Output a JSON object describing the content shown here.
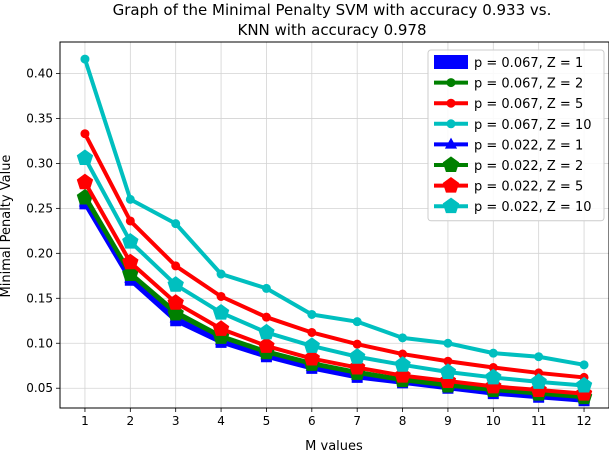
{
  "chart_data": {
    "type": "line",
    "title_line1": "Graph of the Minimal Penalty SVM with accuracy 0.933 vs.",
    "title_line2": "KNN with accuracy 0.978",
    "xlabel": "M values",
    "ylabel": "Minimal Penalty Value",
    "x": [
      1,
      2,
      3,
      4,
      5,
      6,
      7,
      8,
      9,
      10,
      11,
      12
    ],
    "xlim": [
      0.45,
      12.55
    ],
    "ylim": [
      0.028,
      0.435
    ],
    "yticks": [
      "0.05",
      "0.10",
      "0.15",
      "0.20",
      "0.25",
      "0.30",
      "0.35",
      "0.40"
    ],
    "ytick_values": [
      0.05,
      0.1,
      0.15,
      0.2,
      0.25,
      0.3,
      0.35,
      0.4
    ],
    "grid": true,
    "legend_position": "top-right",
    "series": [
      {
        "name": "p = 0.067, Z = 1",
        "color": "#0000ff",
        "marker": "square",
        "values": [
          0.255,
          0.17,
          0.125,
          0.101,
          0.085,
          0.072,
          0.062,
          0.056,
          0.05,
          0.044,
          0.04,
          0.036
        ]
      },
      {
        "name": "p = 0.067, Z = 2",
        "color": "#008000",
        "marker": "circle",
        "values": [
          0.264,
          0.178,
          0.135,
          0.108,
          0.091,
          0.078,
          0.068,
          0.06,
          0.054,
          0.049,
          0.044,
          0.041
        ]
      },
      {
        "name": "p = 0.067, Z = 5",
        "color": "#ff0000",
        "marker": "circle",
        "values": [
          0.333,
          0.236,
          0.186,
          0.152,
          0.129,
          0.112,
          0.099,
          0.088,
          0.08,
          0.073,
          0.067,
          0.062
        ]
      },
      {
        "name": "p = 0.067, Z = 10",
        "color": "#00bfbf",
        "marker": "circle",
        "values": [
          0.416,
          0.26,
          0.233,
          0.177,
          0.161,
          0.132,
          0.124,
          0.106,
          0.1,
          0.089,
          0.085,
          0.076
        ]
      },
      {
        "name": "p = 0.022, Z = 1",
        "color": "#0000ff",
        "marker": "triangle",
        "values": [
          0.257,
          0.172,
          0.128,
          0.103,
          0.087,
          0.074,
          0.064,
          0.057,
          0.051,
          0.046,
          0.042,
          0.038
        ]
      },
      {
        "name": "p = 0.022, Z = 2",
        "color": "#008000",
        "marker": "pentagon",
        "values": [
          0.262,
          0.177,
          0.133,
          0.107,
          0.09,
          0.077,
          0.067,
          0.059,
          0.053,
          0.048,
          0.044,
          0.04
        ]
      },
      {
        "name": "p = 0.022, Z = 5",
        "color": "#ff0000",
        "marker": "pentagon",
        "values": [
          0.279,
          0.19,
          0.145,
          0.116,
          0.097,
          0.083,
          0.073,
          0.064,
          0.058,
          0.052,
          0.048,
          0.044
        ]
      },
      {
        "name": "p = 0.022, Z = 10",
        "color": "#00bfbf",
        "marker": "pentagon",
        "values": [
          0.306,
          0.213,
          0.165,
          0.134,
          0.112,
          0.097,
          0.085,
          0.076,
          0.068,
          0.062,
          0.057,
          0.053
        ]
      }
    ]
  }
}
